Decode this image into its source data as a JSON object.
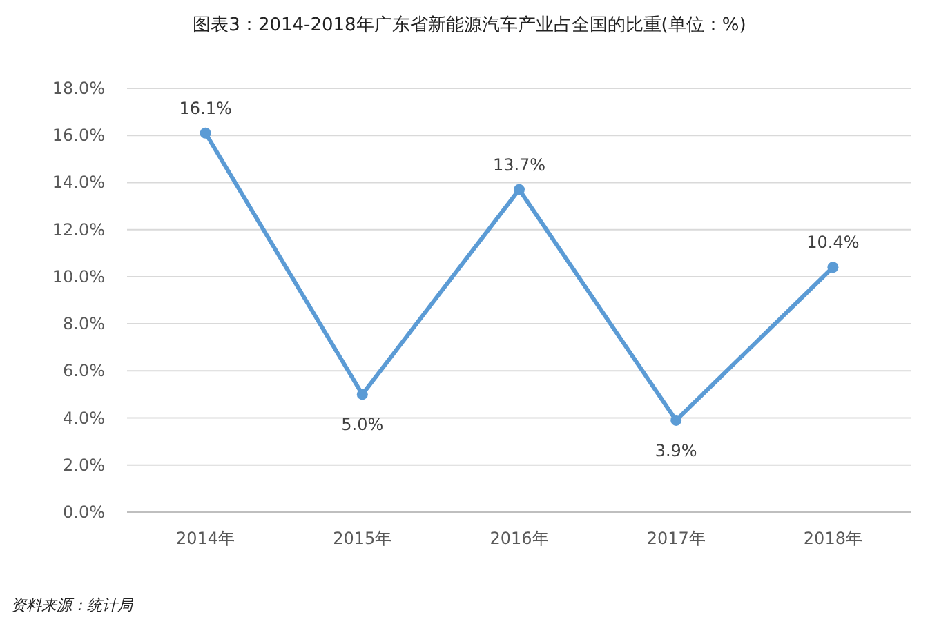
{
  "chart_data": {
    "type": "line",
    "title": "图表3：2014-2018年广东省新能源汽车产业占全国的比重(单位：%)",
    "categories": [
      "2014年",
      "2015年",
      "2016年",
      "2017年",
      "2018年"
    ],
    "values": [
      16.1,
      5.0,
      13.7,
      3.9,
      10.4
    ],
    "value_labels": [
      "16.1%",
      "5.0%",
      "13.7%",
      "3.9%",
      "10.4%"
    ],
    "color": "#5b9bd5",
    "ylim": [
      0,
      18
    ],
    "yticks": [
      {
        "value": 0,
        "label": "0.0%"
      },
      {
        "value": 2,
        "label": "2.0%"
      },
      {
        "value": 4,
        "label": "4.0%"
      },
      {
        "value": 6,
        "label": "6.0%"
      },
      {
        "value": 8,
        "label": "8.0%"
      },
      {
        "value": 10,
        "label": "10.0%"
      },
      {
        "value": 12,
        "label": "12.0%"
      },
      {
        "value": 14,
        "label": "14.0%"
      },
      {
        "value": 16,
        "label": "16.0%"
      },
      {
        "value": 18,
        "label": "18.0%"
      }
    ],
    "grid": "y",
    "marker": "circle",
    "line_style": "solid",
    "annotations": [
      "资料来源：统计局"
    ]
  }
}
